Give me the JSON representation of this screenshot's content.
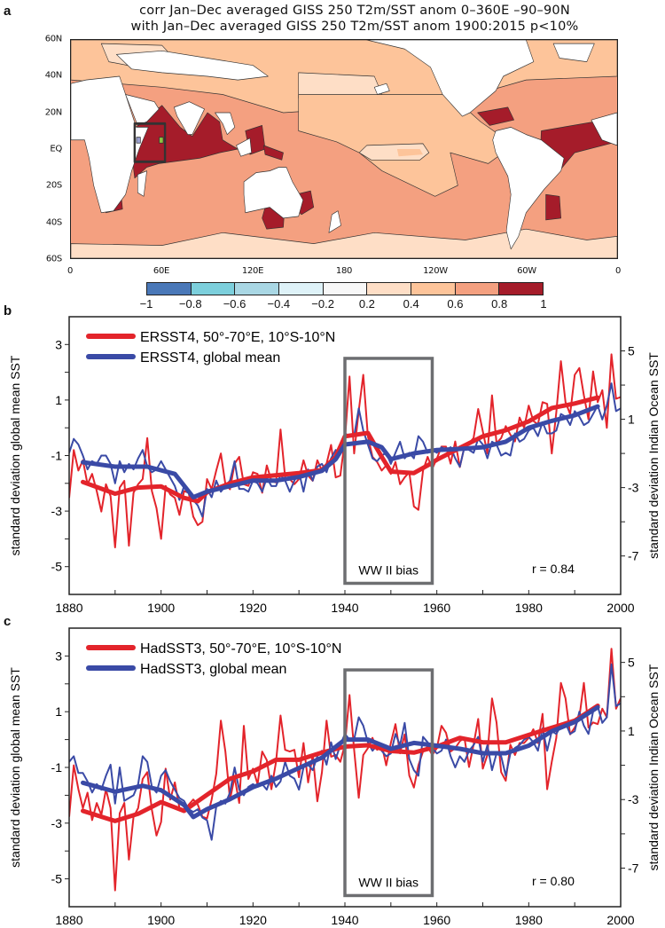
{
  "panel_labels": {
    "a": "a",
    "b": "b",
    "c": "c"
  },
  "map": {
    "title_line1": "corr Jan–Dec averaged GISS 250 T2m/SST anom 0–360E –90–90N",
    "title_line2": "with Jan–Dec averaged GISS 250 T2m/SST anom 1900:2015 p<10%",
    "lat_labels": [
      "60N",
      "40N",
      "20N",
      "EQ",
      "20S",
      "40S",
      "60S"
    ],
    "lon_labels": [
      "0",
      "60E",
      "120E",
      "180",
      "120W",
      "60W",
      "0"
    ],
    "colorbar": {
      "labels": [
        "−1",
        "−0.8",
        "−0.6",
        "−0.4",
        "−0.2",
        "0.2",
        "0.4",
        "0.6",
        "0.8",
        "1"
      ],
      "colors": [
        "#4a78b8",
        "#7ccfdc",
        "#a9d7e4",
        "#def2f8",
        "#f7f7f7",
        "#fedec6",
        "#fdc49a",
        "#f4a080",
        "#a51c2a"
      ]
    },
    "colors": {
      "land": "#ffffff",
      "light": "#fedec6",
      "mid": "#fdc49a",
      "strong": "#f4a080",
      "max": "#a51c2a",
      "box": "#333333",
      "marker1": "#9aa0d0",
      "marker2": "#8cc63f"
    }
  },
  "chart_data": [
    {
      "type": "line",
      "panel": "b",
      "x_start": 1880,
      "xlim": [
        1880,
        2000
      ],
      "xtick_labels": [
        "1880",
        "1900",
        "1920",
        "1940",
        "1960",
        "1980",
        "2000"
      ],
      "ylabel_left": "standard deviation global mean SST",
      "ylabel_right": "standard deviation Indian Ocean SST",
      "ylim_left": [
        -6,
        4
      ],
      "ylim_right": [
        -9.25,
        7
      ],
      "ytick_labels_left": [
        "3",
        "1",
        "-1",
        "-3",
        "-5"
      ],
      "ytick_labels_right": [
        "5",
        "1",
        "-3",
        "-7"
      ],
      "annotation": {
        "label": "WW II bias",
        "x": [
          1940,
          1959
        ],
        "y_left": [
          -5.6,
          2.5
        ]
      },
      "r_text": "r = 0.84",
      "series": [
        {
          "name": "ERSST4, 50°-70°E, 10°S-10°N",
          "axis": "right",
          "color": "#e3242b",
          "raw": [
            -3.6,
            -0.8,
            -2.0,
            -1.4,
            -2.8,
            -2.2,
            -3.2,
            -4.4,
            -2.8,
            -3.5,
            -6.5,
            -3.0,
            -2.6,
            -6.4,
            -3.3,
            -2.8,
            -2.5,
            -0.1,
            -3.2,
            -4.2,
            -6.0,
            -2.9,
            -3.4,
            -3.6,
            -4.6,
            -3.2,
            -3.3,
            -4.7,
            -5.2,
            -5.0,
            -2.5,
            -3.1,
            -2.0,
            -1.0,
            -2.8,
            -3.1,
            -1.6,
            -1.2,
            -2.8,
            -2.9,
            -2.1,
            -2.2,
            -3.3,
            -1.7,
            -2.6,
            -2.7,
            0.4,
            -2.4,
            -2.5,
            -2.8,
            -2.5,
            -1.4,
            -2.3,
            -2.6,
            -1.4,
            -2.0,
            -1.6,
            -0.5,
            -2.4,
            -2.3,
            -0.2,
            3.5,
            -1.0,
            1.5,
            3.6,
            0.0,
            -1.2,
            -1.5,
            -2.0,
            -1.7,
            -2.2,
            -1.5,
            -2.8,
            -2.4,
            -2.1,
            -4.1,
            -4.3,
            -2.0,
            -1.2,
            -1.9,
            -1.3,
            -0.6,
            -0.6,
            -1.6,
            -0.3,
            -1.8,
            -0.6,
            -0.4,
            -0.1,
            1.6,
            0.3,
            -1.0,
            2.4,
            -0.4,
            -0.1,
            0.6,
            0.1,
            -0.3,
            1.1,
            0.5,
            1.8,
            0.9,
            0.7,
            2.0,
            1.9,
            -1.0,
            1.4,
            4.4,
            2.0,
            1.3,
            3.6,
            4.0,
            2.4,
            1.0,
            3.8,
            2.0,
            2.7,
            0.5,
            4.8,
            2.2,
            2.3
          ],
          "smooth": [
            [
              1883,
              -2.67
            ],
            [
              1890,
              -3.36
            ],
            [
              1895,
              -3.0
            ],
            [
              1900,
              -2.93
            ],
            [
              1905,
              -3.6
            ],
            [
              1908,
              -3.8
            ],
            [
              1910,
              -3.27
            ],
            [
              1915,
              -2.75
            ],
            [
              1920,
              -2.4
            ],
            [
              1930,
              -2.15
            ],
            [
              1935,
              -1.97
            ],
            [
              1938,
              -1.2
            ],
            [
              1940,
              0.0
            ],
            [
              1945,
              0.2
            ],
            [
              1948,
              -1.2
            ],
            [
              1950,
              -2.06
            ],
            [
              1955,
              -2.15
            ],
            [
              1958,
              -1.7
            ],
            [
              1960,
              -1.37
            ],
            [
              1965,
              -0.68
            ],
            [
              1970,
              0.0
            ],
            [
              1975,
              0.36
            ],
            [
              1980,
              0.88
            ],
            [
              1985,
              1.66
            ],
            [
              1990,
              1.92
            ],
            [
              1995,
              2.27
            ]
          ]
        },
        {
          "name": "ERSST4, global mean",
          "axis": "left",
          "color": "#3a4aa6",
          "raw": [
            -0.9,
            -0.4,
            -0.6,
            -1.0,
            -1.5,
            -1.2,
            -1.3,
            -1.0,
            -1.0,
            -1.3,
            -2.0,
            -1.2,
            -1.6,
            -1.3,
            -1.5,
            -1.1,
            -0.8,
            -1.4,
            -1.6,
            -1.5,
            -1.2,
            -1.5,
            -1.8,
            -2.1,
            -2.6,
            -2.1,
            -2.3,
            -2.6,
            -2.8,
            -3.2,
            -2.2,
            -2.5,
            -1.9,
            -2.3,
            -2.1,
            -1.9,
            -1.2,
            -2.2,
            -2.2,
            -2.3,
            -1.9,
            -2.0,
            -2.3,
            -1.8,
            -2.1,
            -2.1,
            -1.7,
            -1.9,
            -2.3,
            -1.9,
            -1.6,
            -2.3,
            -1.5,
            -1.9,
            -1.4,
            -1.3,
            -1.6,
            -1.1,
            -0.8,
            -0.9,
            -0.2,
            -0.3,
            -0.3,
            0.7,
            -0.1,
            -0.6,
            -1.1,
            -1.2,
            -1.0,
            -0.9,
            -1.3,
            -0.9,
            -0.5,
            -1.1,
            -0.9,
            -1.1,
            -0.3,
            -0.5,
            -0.9,
            -0.8,
            -0.9,
            -0.7,
            -0.8,
            -0.7,
            -1.1,
            -1.4,
            -0.7,
            -0.8,
            -0.9,
            -0.4,
            -0.6,
            -1.1,
            -0.5,
            -0.6,
            -1.0,
            -0.9,
            -1.0,
            -0.2,
            -0.5,
            -0.4,
            -0.1,
            0.0,
            -0.3,
            0.2,
            -0.2,
            -0.2,
            -0.1,
            0.5,
            0.4,
            0.1,
            0.6,
            0.4,
            0.1,
            0.2,
            0.5,
            0.8,
            0.3,
            0.8,
            1.6,
            0.6,
            0.7
          ],
          "smooth": [
            [
              1883,
              -1.24
            ],
            [
              1890,
              -1.4
            ],
            [
              1897,
              -1.4
            ],
            [
              1903,
              -1.66
            ],
            [
              1907,
              -2.5
            ],
            [
              1910,
              -2.3
            ],
            [
              1915,
              -2.1
            ],
            [
              1920,
              -1.9
            ],
            [
              1925,
              -1.9
            ],
            [
              1930,
              -1.77
            ],
            [
              1935,
              -1.55
            ],
            [
              1938,
              -1.13
            ],
            [
              1940,
              -0.6
            ],
            [
              1945,
              -0.5
            ],
            [
              1948,
              -0.7
            ],
            [
              1950,
              -1.13
            ],
            [
              1955,
              -0.92
            ],
            [
              1960,
              -0.8
            ],
            [
              1965,
              -0.76
            ],
            [
              1970,
              -0.7
            ],
            [
              1975,
              -0.5
            ],
            [
              1980,
              0.0
            ],
            [
              1985,
              0.25
            ],
            [
              1990,
              0.45
            ],
            [
              1995,
              0.77
            ]
          ]
        }
      ]
    },
    {
      "type": "line",
      "panel": "c",
      "x_start": 1880,
      "xlim": [
        1880,
        2000
      ],
      "xtick_labels": [
        "1880",
        "1900",
        "1920",
        "1940",
        "1960",
        "1980",
        "2000"
      ],
      "ylabel_left": "standard deviation global mean SST",
      "ylabel_right": "standard deviation Indian Ocean SST",
      "ylim_left": [
        -6,
        4
      ],
      "ylim_right": [
        -9.25,
        7
      ],
      "ytick_labels_left": [
        "3",
        "1",
        "-1",
        "-3",
        "-5"
      ],
      "ytick_labels_right": [
        "5",
        "1",
        "-3",
        "-7"
      ],
      "annotation": {
        "label": "WW II bias",
        "x": [
          1940,
          1959
        ],
        "y_left": [
          -5.6,
          2.5
        ]
      },
      "r_text": "r = 0.80",
      "series": [
        {
          "name": "HadSST3, 50°-70°E, 10°S-10°N",
          "axis": "right",
          "color": "#e3242b",
          "raw": [
            -4.0,
            -1.0,
            -2.4,
            -3.5,
            -2.6,
            -4.2,
            -3.2,
            -3.9,
            -2.4,
            -3.5,
            -8.3,
            -3.8,
            -3.2,
            -6.5,
            -4.0,
            -3.5,
            -1.8,
            -1.4,
            -3.6,
            -5.1,
            -4.3,
            -1.2,
            -3.0,
            -2.0,
            -3.5,
            -3.7,
            -3.3,
            -3.0,
            -3.3,
            -4.0,
            -4.1,
            -3.0,
            -1.5,
            1.6,
            -0.2,
            -3.0,
            -1.7,
            -3.2,
            1.3,
            -1.8,
            -1.2,
            -2.1,
            -0.2,
            -0.7,
            -2.4,
            -0.8,
            1.9,
            -0.1,
            -0.2,
            -0.1,
            -1.7,
            0.3,
            -2.0,
            -0.4,
            -3.1,
            -1.4,
            1.6,
            -0.5,
            -0.4,
            -0.8,
            0.2,
            3.1,
            -0.1,
            -2.9,
            -0.4,
            0.0,
            0.6,
            -0.1,
            0.2,
            -1.0,
            0.3,
            1.4,
            -0.3,
            0.8,
            -1.6,
            -2.3,
            -1.0,
            -0.2,
            0.1,
            -0.4,
            0.0,
            1.3,
            0.9,
            -0.2,
            0.0,
            0.4,
            0.6,
            -1.1,
            0.2,
            1.7,
            -1.2,
            -0.4,
            2.9,
            1.5,
            -1.4,
            -1.9,
            0.2,
            -0.4,
            0.3,
            0.3,
            0.6,
            1.1,
            0.3,
            2.0,
            -2.4,
            -0.8,
            0.6,
            3.8,
            2.9,
            0.8,
            1.2,
            1.8,
            3.8,
            1.2,
            1.5,
            1.4,
            2.3,
            1.8,
            5.8,
            2.3,
            2.9
          ],
          "smooth": [
            [
              1883,
              -3.66
            ],
            [
              1890,
              -4.25
            ],
            [
              1895,
              -3.83
            ],
            [
              1900,
              -3.15
            ],
            [
              1905,
              -3.66
            ],
            [
              1910,
              -2.72
            ],
            [
              1915,
              -1.79
            ],
            [
              1920,
              -1.36
            ],
            [
              1925,
              -0.68
            ],
            [
              1930,
              -0.68
            ],
            [
              1935,
              -0.26
            ],
            [
              1940,
              0.09
            ],
            [
              1945,
              0.17
            ],
            [
              1950,
              -0.17
            ],
            [
              1955,
              -0.26
            ],
            [
              1960,
              0.09
            ],
            [
              1965,
              0.6
            ],
            [
              1970,
              0.34
            ],
            [
              1975,
              0.34
            ],
            [
              1980,
              0.77
            ],
            [
              1985,
              1.19
            ],
            [
              1990,
              1.6
            ],
            [
              1995,
              2.47
            ]
          ]
        },
        {
          "name": "HadSST3, global mean",
          "axis": "left",
          "color": "#3a4aa6",
          "raw": [
            -0.8,
            -0.6,
            -1.2,
            -1.2,
            -1.5,
            -1.9,
            -1.6,
            -1.8,
            -1.3,
            -0.9,
            -2.3,
            -1.0,
            -2.2,
            -2.1,
            -2.0,
            -1.6,
            -0.6,
            -0.8,
            -1.7,
            -1.9,
            -1.3,
            -1.1,
            -1.5,
            -1.8,
            -2.1,
            -2.2,
            -2.5,
            -2.6,
            -2.5,
            -2.8,
            -2.9,
            -3.6,
            -2.4,
            -2.2,
            -2.3,
            -1.9,
            -1.0,
            -1.8,
            -2.0,
            -1.7,
            -1.6,
            -1.7,
            -1.6,
            -1.8,
            -1.3,
            -1.7,
            -1.5,
            -0.8,
            -1.3,
            -1.4,
            -1.8,
            -1.0,
            -0.9,
            -1.1,
            -0.6,
            -0.4,
            -0.9,
            -0.1,
            -0.7,
            -0.2,
            0.2,
            0.0,
            0.0,
            0.8,
            0.5,
            -0.1,
            -0.4,
            -0.2,
            -0.4,
            -0.6,
            -0.5,
            0.2,
            -0.2,
            0.6,
            -0.7,
            -1.1,
            -1.3,
            0.1,
            -0.1,
            -0.3,
            -0.5,
            -0.4,
            0.0,
            -0.6,
            -1.0,
            -0.6,
            -0.8,
            -0.4,
            -0.2,
            0.1,
            -0.8,
            -0.2,
            -1.1,
            -0.5,
            -0.6,
            -1.3,
            -0.5,
            -0.3,
            -0.2,
            0.0,
            0.1,
            -0.1,
            -0.4,
            0.4,
            -0.4,
            0.3,
            0.2,
            0.5,
            0.6,
            0.2,
            0.3,
            1.0,
            0.5,
            0.2,
            1.0,
            1.2,
            0.6,
            0.8,
            2.7,
            1.2,
            1.3
          ],
          "smooth": [
            [
              1883,
              -1.55
            ],
            [
              1890,
              -1.87
            ],
            [
              1896,
              -1.66
            ],
            [
              1900,
              -1.82
            ],
            [
              1905,
              -2.35
            ],
            [
              1907,
              -2.78
            ],
            [
              1910,
              -2.5
            ],
            [
              1915,
              -2.14
            ],
            [
              1920,
              -1.71
            ],
            [
              1925,
              -1.4
            ],
            [
              1930,
              -1.02
            ],
            [
              1935,
              -0.65
            ],
            [
              1940,
              0.0
            ],
            [
              1945,
              0.0
            ],
            [
              1950,
              -0.33
            ],
            [
              1955,
              -0.12
            ],
            [
              1960,
              -0.22
            ],
            [
              1965,
              -0.33
            ],
            [
              1970,
              -0.49
            ],
            [
              1975,
              -0.49
            ],
            [
              1980,
              -0.22
            ],
            [
              1985,
              0.3
            ],
            [
              1990,
              0.63
            ],
            [
              1995,
              1.16
            ]
          ]
        }
      ]
    }
  ]
}
